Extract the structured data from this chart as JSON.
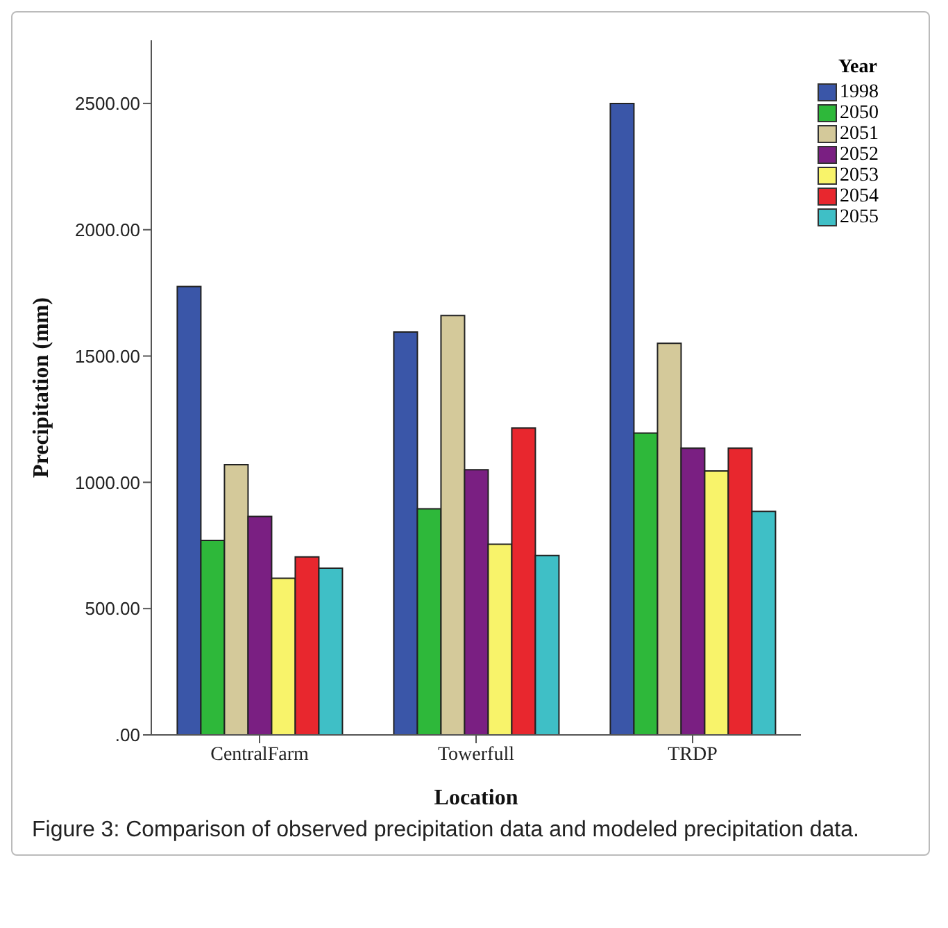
{
  "chart_data": {
    "type": "bar",
    "xlabel": "Location",
    "ylabel": "Precipitation (mm)",
    "legend_title": "Year",
    "legend": "top right",
    "grid": false,
    "categories": [
      "CentralFarm",
      "Towerfull",
      "TRDP"
    ],
    "series": [
      {
        "name": "1998",
        "color": "#3a56a8",
        "values": [
          1775,
          1595,
          2500
        ]
      },
      {
        "name": "2050",
        "color": "#2eb83a",
        "values": [
          770,
          895,
          1195
        ]
      },
      {
        "name": "2051",
        "color": "#d4c99a",
        "values": [
          1070,
          1660,
          1550
        ]
      },
      {
        "name": "2052",
        "color": "#7a1f82",
        "values": [
          865,
          1050,
          1135
        ]
      },
      {
        "name": "2053",
        "color": "#f8f36a",
        "values": [
          620,
          755,
          1045
        ]
      },
      {
        "name": "2054",
        "color": "#e8272e",
        "values": [
          705,
          1215,
          1135
        ]
      },
      {
        "name": "2055",
        "color": "#3fbfc6",
        "values": [
          660,
          710,
          885
        ]
      }
    ],
    "ylim": [
      0,
      2750
    ],
    "yticks": [
      {
        "value": 0,
        "label": ".00"
      },
      {
        "value": 500,
        "label": "500.00"
      },
      {
        "value": 1000,
        "label": "1000.00"
      },
      {
        "value": 1500,
        "label": "1500.00"
      },
      {
        "value": 2000,
        "label": "2000.00"
      },
      {
        "value": 2500,
        "label": "2500.00"
      }
    ],
    "annotations": [
      "Figure 3: Comparison of observed precipitation data and modeled precipitation data."
    ]
  }
}
